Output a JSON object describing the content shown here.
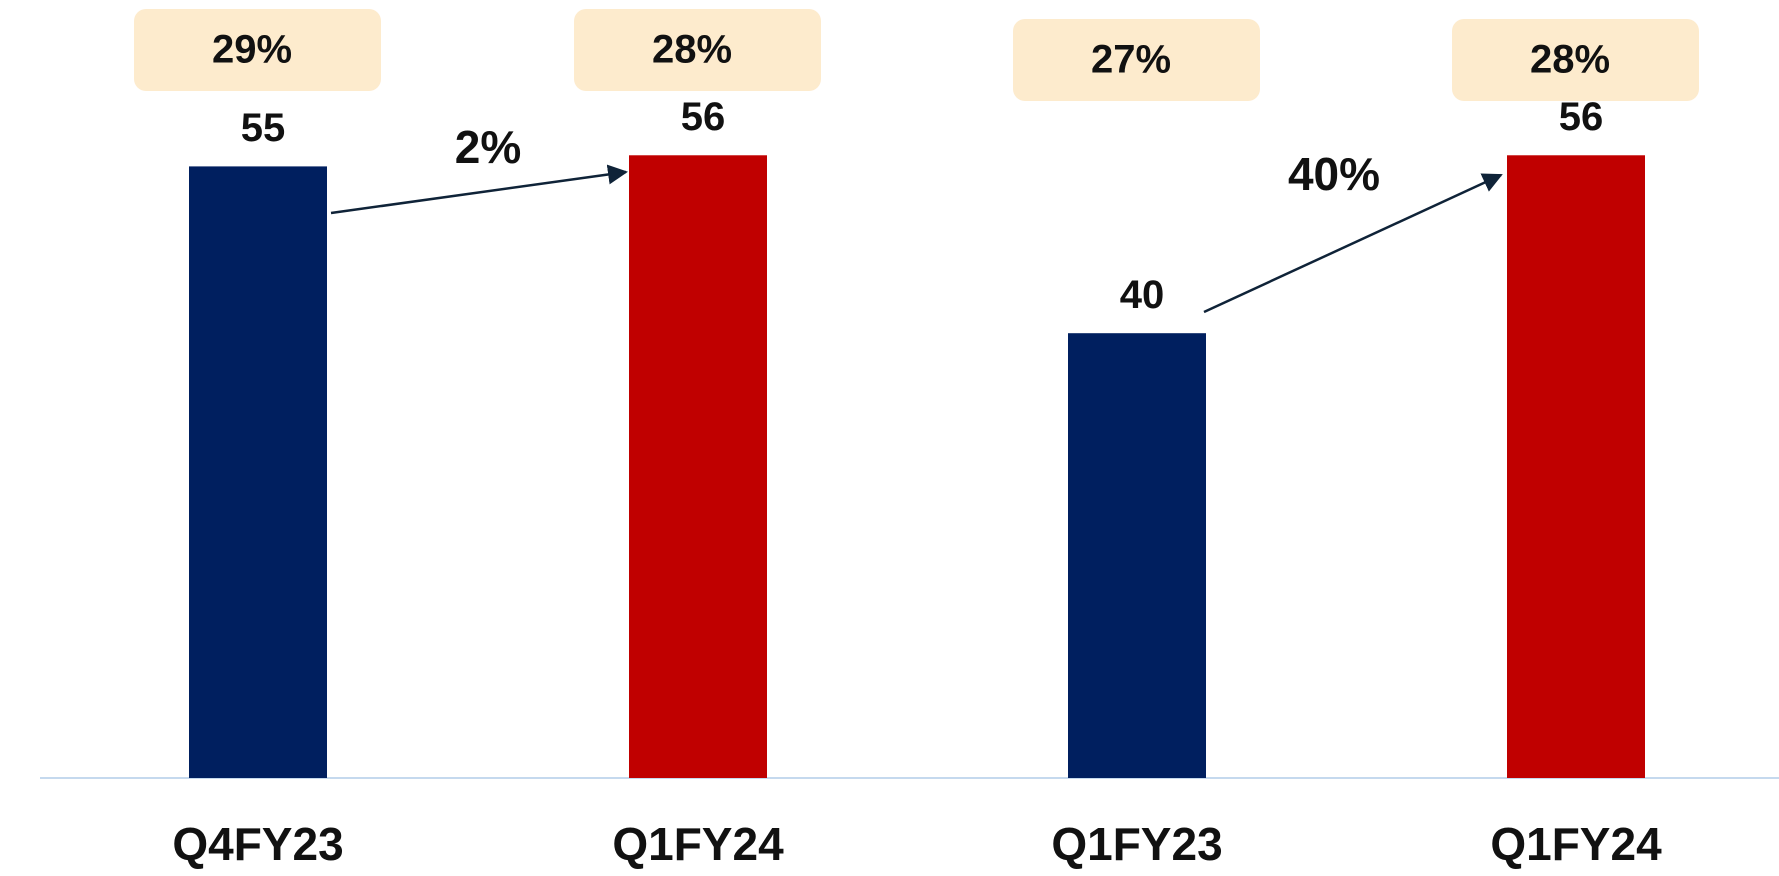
{
  "chart_data": {
    "type": "bar",
    "categories": [
      "Q4FY23",
      "Q1FY24",
      "Q1FY23",
      "Q1FY24"
    ],
    "values": [
      55,
      56,
      40,
      56
    ],
    "colors": [
      "#001f5f",
      "#c00000",
      "#001f5f",
      "#c00000"
    ],
    "margins": {
      "values": [
        29,
        28,
        27,
        28
      ],
      "value_labels": [
        "29%",
        "28%",
        "27%",
        "28%"
      ]
    },
    "growth": {
      "values": [
        2,
        40
      ],
      "value_labels": [
        "2%",
        "40%"
      ]
    }
  }
}
